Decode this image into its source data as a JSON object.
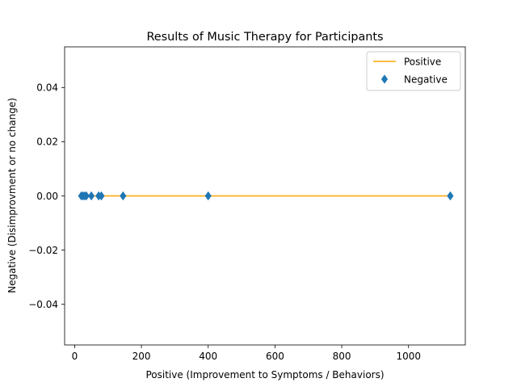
{
  "chart_data": {
    "type": "line",
    "title": "Results of Music Therapy for Participants",
    "xlabel": "Positive (Improvement to Symptoms / Behaviors)",
    "ylabel": "Negative (Disimprovment or no change)",
    "xlim": [
      -30,
      1170
    ],
    "ylim": [
      -0.055,
      0.055
    ],
    "xticks": [
      0,
      200,
      400,
      600,
      800,
      1000
    ],
    "xtick_labels": [
      "0",
      "200",
      "400",
      "600",
      "800",
      "1000"
    ],
    "yticks": [
      -0.04,
      -0.02,
      0.0,
      0.02,
      0.04
    ],
    "ytick_labels": [
      "−0.04",
      "−0.02",
      "0.00",
      "0.02",
      "0.04"
    ],
    "grid": false,
    "legend_position": "top-right",
    "series": [
      {
        "name": "Positive",
        "kind": "line",
        "color": "#ffa500",
        "x": [
          20,
          1125
        ],
        "y": [
          0,
          0
        ]
      },
      {
        "name": "Negative",
        "kind": "scatter",
        "marker": "thin-diamond",
        "color": "#1f77b4",
        "x": [
          20,
          25,
          30,
          35,
          50,
          72,
          80,
          145,
          400,
          1125
        ],
        "y": [
          0,
          0,
          0,
          0,
          0,
          0,
          0,
          0,
          0,
          0
        ]
      }
    ]
  }
}
